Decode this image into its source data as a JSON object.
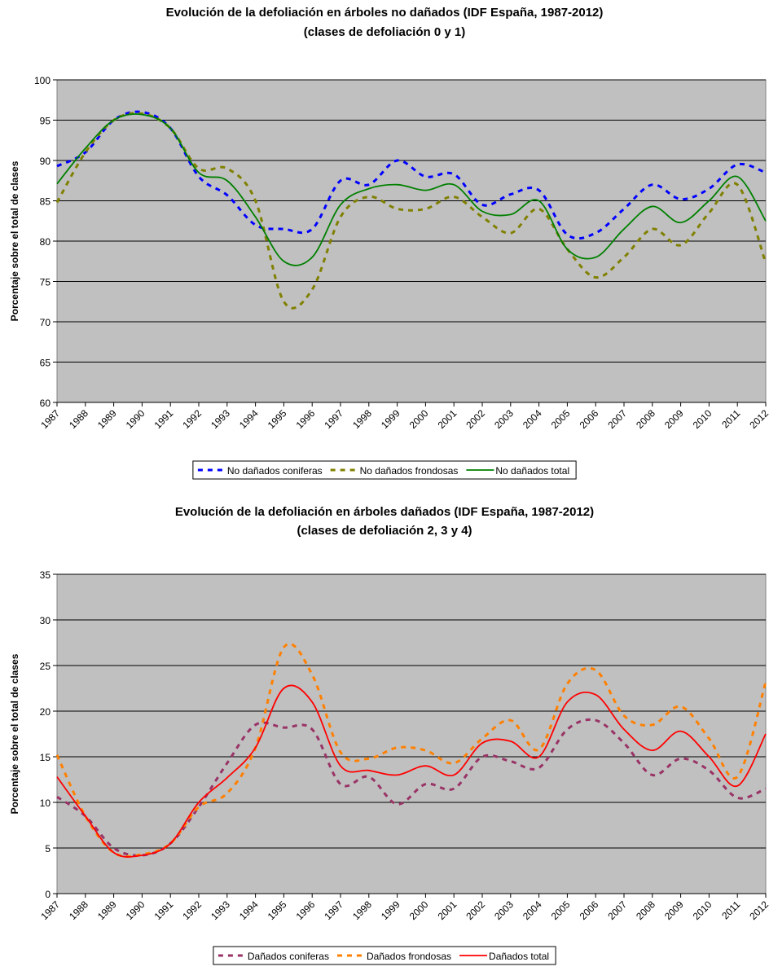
{
  "chart_data": [
    {
      "type": "line",
      "title": "Evolución de la defoliación en árboles no dañados (IDF España, 1987-2012)",
      "subtitle": "(clases de defoliación 0 y 1)",
      "y_label": "Porcentaje sobre el total de clases",
      "categories": [
        "1987",
        "1988",
        "1989",
        "1990",
        "1991",
        "1992",
        "1993",
        "1994",
        "1995",
        "1996",
        "1997",
        "1998",
        "1999",
        "2000",
        "2001",
        "2002",
        "2003",
        "2004",
        "2005",
        "2006",
        "2007",
        "2008",
        "2009",
        "2010",
        "2011",
        "2012"
      ],
      "series": [
        {
          "name": "No dañados coniferas",
          "color": "#0000ff",
          "dash": "dashed",
          "values": [
            89.3,
            91,
            95,
            96,
            94,
            88,
            85.7,
            82,
            81.5,
            81.5,
            87.5,
            87,
            90,
            88,
            88.3,
            84.5,
            85.8,
            86.3,
            80.8,
            81,
            84,
            87,
            85.2,
            86.5,
            89.5,
            88.5
          ]
        },
        {
          "name": "No dañados frondosas",
          "color": "#808000",
          "dash": "dashed",
          "values": [
            84.8,
            91,
            95,
            95.8,
            94,
            89,
            89,
            85,
            72.5,
            74,
            83,
            85.5,
            84,
            84,
            85.5,
            83,
            81,
            84,
            79,
            75.5,
            78,
            81.5,
            79.5,
            83.5,
            87,
            77.3
          ]
        },
        {
          "name": "No dañados total",
          "color": "#008000",
          "dash": "solid",
          "values": [
            87.1,
            91.5,
            95,
            95.7,
            94,
            88.5,
            87.5,
            83,
            77.5,
            78,
            84.5,
            86.5,
            87,
            86.3,
            87,
            83.7,
            83.3,
            85,
            79,
            78,
            81.5,
            84.3,
            82.3,
            85,
            88,
            82.5
          ]
        }
      ],
      "ylim": [
        60,
        100
      ],
      "yticks": [
        60,
        65,
        70,
        75,
        80,
        85,
        90,
        95,
        100
      ],
      "grid": true,
      "legend": "bottom",
      "plot_background": "#c0c0c0"
    },
    {
      "type": "line",
      "title": "Evolución de la defoliación en árboles dañados (IDF España, 1987-2012)",
      "subtitle": "(clases de defoliación 2, 3 y 4)",
      "y_label": "Porcentaje sobre el total de clases",
      "categories": [
        "1987",
        "1988",
        "1989",
        "1990",
        "1991",
        "1992",
        "1993",
        "1994",
        "1995",
        "1996",
        "1997",
        "1998",
        "1999",
        "2000",
        "2001",
        "2002",
        "2003",
        "2004",
        "2005",
        "2006",
        "2007",
        "2008",
        "2009",
        "2010",
        "2011",
        "2012"
      ],
      "series": [
        {
          "name": "Dañados coniferas",
          "color": "#993366",
          "dash": "dashed",
          "values": [
            10.6,
            8.5,
            5,
            4.2,
            5.5,
            9.5,
            14.3,
            18.5,
            18.2,
            18,
            12,
            12.8,
            9.8,
            12,
            11.5,
            15,
            14.5,
            13.8,
            18,
            19,
            16.5,
            13,
            14.8,
            13.5,
            10.5,
            11.5
          ]
        },
        {
          "name": "Dañados frondosas",
          "color": "#ff8000",
          "dash": "dashed",
          "values": [
            15.2,
            8.5,
            4.5,
            4.3,
            5.5,
            9.5,
            11,
            16,
            27,
            24,
            15.5,
            14.8,
            16,
            15.7,
            14.3,
            17,
            19,
            15.8,
            23,
            24.5,
            19.5,
            18.5,
            20.5,
            17,
            12.8,
            23.2
          ]
        },
        {
          "name": "Dañados total",
          "color": "#ff0000",
          "dash": "solid",
          "values": [
            12.8,
            8.5,
            4.5,
            4.2,
            5.5,
            10,
            12.7,
            16,
            22.5,
            21,
            14,
            13.5,
            13,
            14,
            13,
            16.5,
            16.7,
            15,
            21,
            21.8,
            18,
            15.7,
            17.8,
            15,
            11.8,
            17.5
          ]
        }
      ],
      "ylim": [
        0,
        35
      ],
      "yticks": [
        0,
        5,
        10,
        15,
        20,
        25,
        30,
        35
      ],
      "grid": true,
      "legend": "bottom",
      "plot_background": "#c0c0c0"
    }
  ]
}
